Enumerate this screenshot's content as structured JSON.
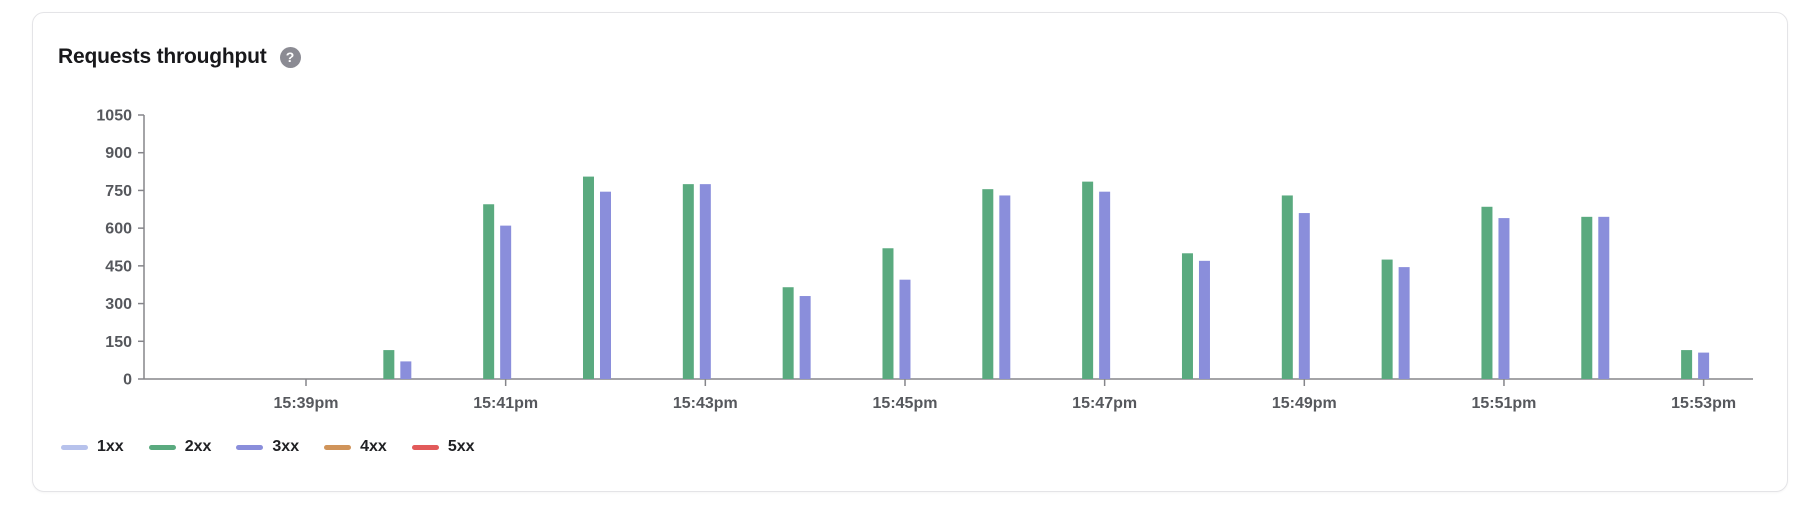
{
  "card": {
    "title": "Requests throughput",
    "help_icon_glyph": "?"
  },
  "chart_data": {
    "type": "bar",
    "title": "Requests throughput",
    "x": [
      "15:39",
      "15:40",
      "15:41",
      "15:42",
      "15:43",
      "15:44",
      "15:45",
      "15:46",
      "15:47",
      "15:48",
      "15:49",
      "15:50",
      "15:51",
      "15:52",
      "15:53"
    ],
    "x_tick_labels": [
      "15:39pm",
      "15:41pm",
      "15:43pm",
      "15:45pm",
      "15:47pm",
      "15:49pm",
      "15:51pm",
      "15:53pm"
    ],
    "y_ticks": [
      0,
      150,
      300,
      450,
      600,
      750,
      900,
      1050
    ],
    "ylim": [
      0,
      1050
    ],
    "grid": false,
    "legend_position": "bottom-left",
    "series": [
      {
        "name": "1xx",
        "color": "#b7c2ec",
        "values": [
          0,
          0,
          0,
          0,
          0,
          0,
          0,
          0,
          0,
          0,
          0,
          0,
          0,
          0,
          0
        ]
      },
      {
        "name": "2xx",
        "color": "#5aaa7f",
        "values": [
          0,
          115,
          695,
          805,
          775,
          365,
          520,
          755,
          785,
          500,
          730,
          475,
          685,
          645,
          115
        ]
      },
      {
        "name": "3xx",
        "color": "#8a8edb",
        "values": [
          0,
          70,
          610,
          745,
          775,
          330,
          395,
          730,
          745,
          470,
          660,
          445,
          640,
          645,
          105
        ]
      },
      {
        "name": "4xx",
        "color": "#d0945a",
        "values": [
          0,
          0,
          0,
          0,
          0,
          0,
          0,
          0,
          0,
          0,
          0,
          0,
          0,
          0,
          0
        ]
      },
      {
        "name": "5xx",
        "color": "#e25a5a",
        "values": [
          0,
          0,
          0,
          0,
          0,
          0,
          0,
          0,
          0,
          0,
          0,
          0,
          0,
          0,
          0
        ]
      }
    ],
    "colors": {
      "axis": "#85858a",
      "tick_text": "#56585d"
    }
  }
}
